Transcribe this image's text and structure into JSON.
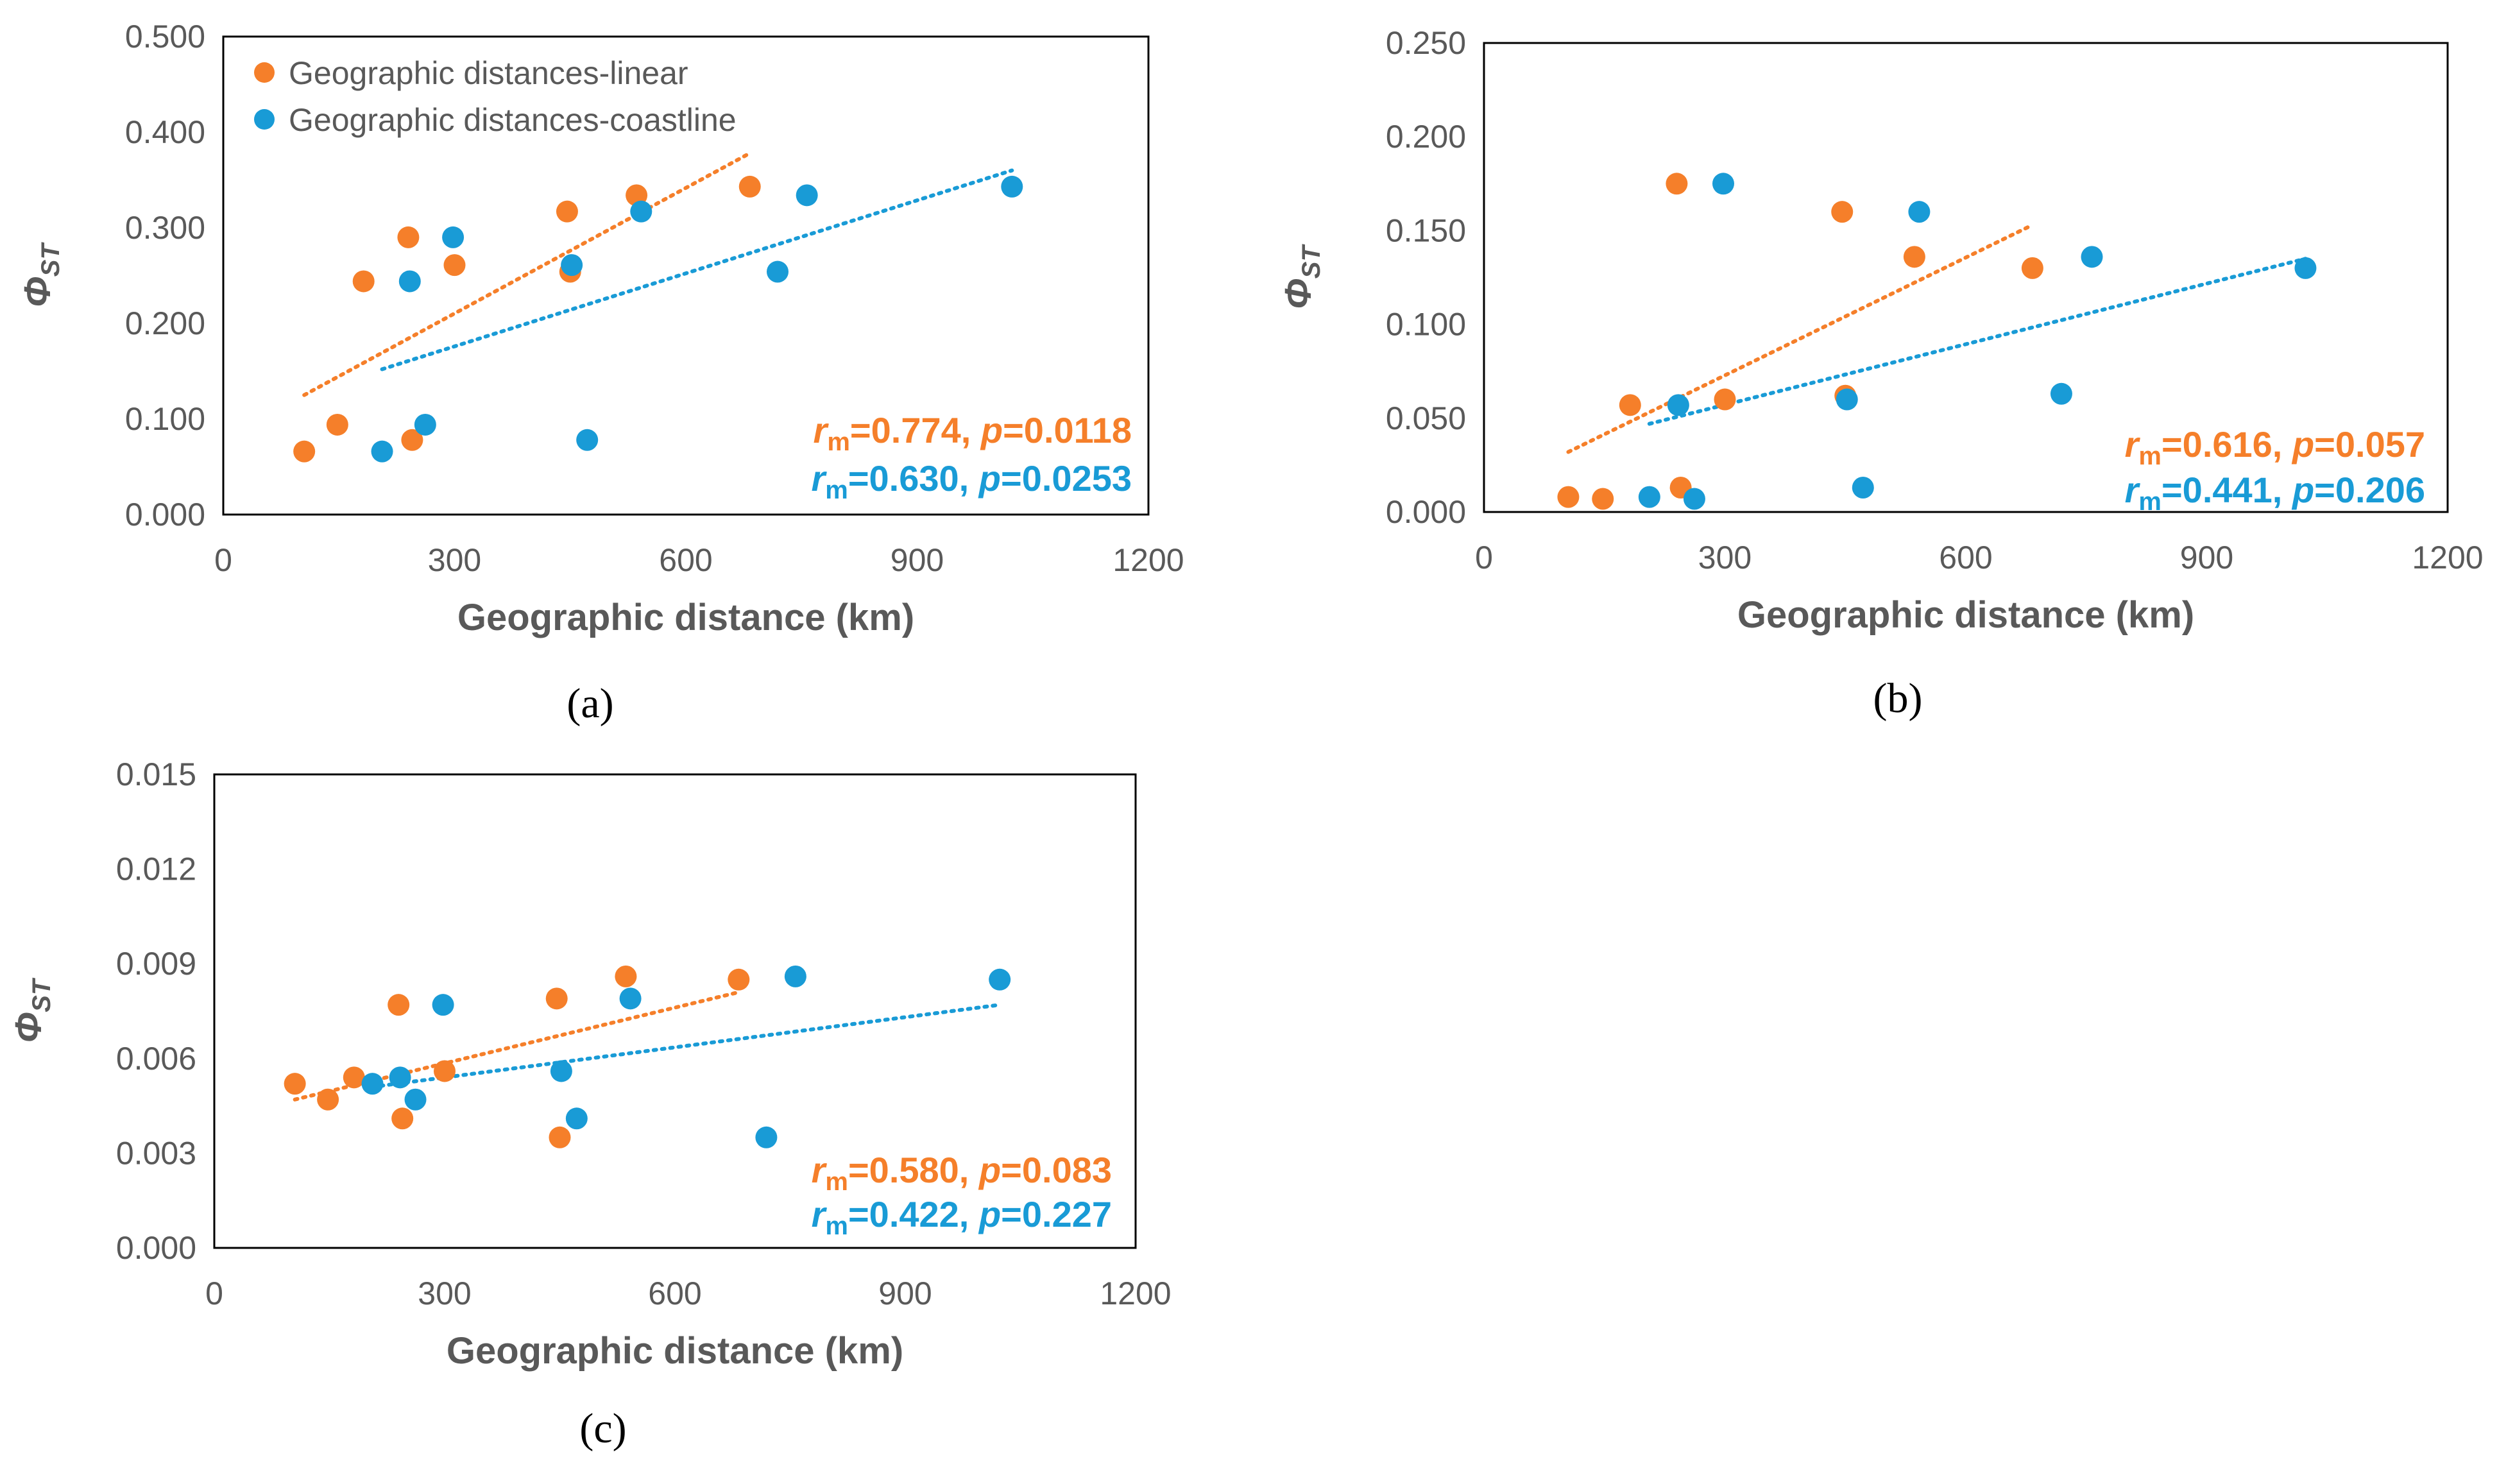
{
  "colors": {
    "linear": "#F57F2A",
    "coastline": "#199BD6"
  },
  "legend": {
    "linear": "Geographic distances-linear",
    "coastline": "Geographic distances-coastline"
  },
  "chart_data": [
    {
      "type": "scatter",
      "panel": "(a)",
      "xlabel": "Geographic distance (km)",
      "ylabel": "Φ",
      "ylabel_sub": "ST",
      "xlim": [
        0,
        1200
      ],
      "ylim": [
        0,
        0.5
      ],
      "xticks": [
        "0",
        "300",
        "600",
        "900",
        "1200"
      ],
      "yticks": [
        "0.000",
        "0.100",
        "0.200",
        "0.300",
        "0.400",
        "0.500"
      ],
      "series": [
        {
          "name": "Geographic distances-linear",
          "key": "linear",
          "x": [
            105,
            148,
            182,
            240,
            245,
            300,
            446,
            450,
            536,
            683
          ],
          "y": [
            0.066,
            0.094,
            0.244,
            0.29,
            0.078,
            0.261,
            0.317,
            0.254,
            0.334,
            0.343
          ],
          "trend": {
            "x": [
              105,
              683
            ],
            "y": [
              0.125,
              0.378
            ]
          },
          "r_m": "0.774",
          "p": "0.0118"
        },
        {
          "name": "Geographic distances-coastline",
          "key": "coastline",
          "x": [
            206,
            242,
            262,
            298,
            452,
            472,
            542,
            719,
            757,
            1023
          ],
          "y": [
            0.066,
            0.244,
            0.094,
            0.29,
            0.261,
            0.078,
            0.317,
            0.254,
            0.334,
            0.343
          ],
          "trend": {
            "x": [
              206,
              1023
            ],
            "y": [
              0.152,
              0.36
            ]
          },
          "r_m": "0.630",
          "p": "0.0253"
        }
      ]
    },
    {
      "type": "scatter",
      "panel": "(b)",
      "xlabel": "Geographic distance (km)",
      "ylabel": "Φ",
      "ylabel_sub": "ST",
      "xlim": [
        0,
        1200
      ],
      "ylim": [
        0,
        0.25
      ],
      "xticks": [
        "0",
        "300",
        "600",
        "900",
        "1200"
      ],
      "yticks": [
        "0.000",
        "0.050",
        "0.100",
        "0.150",
        "0.200",
        "0.250"
      ],
      "series": [
        {
          "name": "Geographic distances-linear",
          "key": "linear",
          "x": [
            105,
            148,
            182,
            240,
            245,
            300,
            446,
            450,
            536,
            683
          ],
          "y": [
            0.008,
            0.007,
            0.057,
            0.175,
            0.013,
            0.06,
            0.16,
            0.062,
            0.136,
            0.13
          ],
          "trend": {
            "x": [
              105,
              683
            ],
            "y": [
              0.032,
              0.153
            ]
          },
          "r_m": "0.616",
          "p": "0.057"
        },
        {
          "name": "Geographic distances-coastline",
          "key": "coastline",
          "x": [
            206,
            242,
            262,
            298,
            452,
            472,
            542,
            719,
            757,
            1023
          ],
          "y": [
            0.008,
            0.057,
            0.007,
            0.175,
            0.06,
            0.013,
            0.16,
            0.063,
            0.136,
            0.13
          ],
          "trend": {
            "x": [
              206,
              1023
            ],
            "y": [
              0.047,
              0.135
            ]
          },
          "r_m": "0.441",
          "p": "0.206"
        }
      ]
    },
    {
      "type": "scatter",
      "panel": "(c)",
      "xlabel": "Geographic distance (km)",
      "ylabel": "Φ",
      "ylabel_sub": "ST",
      "xlim": [
        0,
        1200
      ],
      "ylim": [
        0,
        0.015
      ],
      "xticks": [
        "0",
        "300",
        "600",
        "900",
        "1200"
      ],
      "yticks": [
        "0.000",
        "0.003",
        "0.006",
        "0.009",
        "0.012",
        "0.015"
      ],
      "series": [
        {
          "name": "Geographic distances-linear",
          "key": "linear",
          "x": [
            105,
            148,
            182,
            240,
            245,
            300,
            446,
            450,
            536,
            683
          ],
          "y": [
            0.0052,
            0.0047,
            0.0054,
            0.0077,
            0.0041,
            0.0056,
            0.0079,
            0.0035,
            0.0086,
            0.0085
          ],
          "trend": {
            "x": [
              105,
              683
            ],
            "y": [
              0.0047,
              0.0081
            ]
          },
          "r_m": "0.580",
          "p": "0.083"
        },
        {
          "name": "Geographic distances-coastline",
          "key": "coastline",
          "x": [
            206,
            242,
            262,
            298,
            452,
            472,
            542,
            719,
            757,
            1023
          ],
          "y": [
            0.0052,
            0.0054,
            0.0047,
            0.0077,
            0.0056,
            0.0041,
            0.0079,
            0.0035,
            0.0086,
            0.0085
          ],
          "trend": {
            "x": [
              206,
              1023
            ],
            "y": [
              0.0051,
              0.0077
            ]
          },
          "r_m": "0.422",
          "p": "0.227"
        }
      ]
    }
  ]
}
